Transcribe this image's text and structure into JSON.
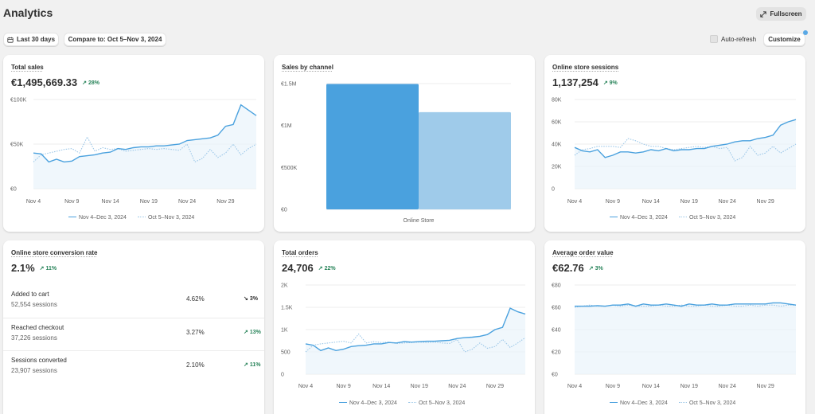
{
  "header": {
    "title": "Analytics",
    "fullscreen_label": "Fullscreen"
  },
  "toolbar": {
    "range_label": "Last 30 days",
    "compare_label": "Compare to: Oct 5–Nov 3, 2024",
    "autorefresh_label": "Auto-refresh",
    "customize_label": "Customize"
  },
  "legend": {
    "current": "Nov 4–Dec 3, 2024",
    "previous": "Oct 5–Nov 3, 2024"
  },
  "colors": {
    "current": "#4aa1de",
    "previous": "#9cc7e8",
    "positive": "#29845a"
  },
  "cards": {
    "total_sales": {
      "title": "Total sales",
      "value": "€1,495,669.33",
      "delta": "28%"
    },
    "sales_by_channel": {
      "title": "Sales by channel"
    },
    "sessions": {
      "title": "Online store sessions",
      "value": "1,137,254",
      "delta": "9%"
    },
    "conversion": {
      "title": "Online store conversion rate",
      "value": "2.1%",
      "delta": "11%",
      "rows": [
        {
          "name": "Added to cart",
          "sessions": "52,554 sessions",
          "pct": "4.62%",
          "delta": "3%",
          "direction": "down"
        },
        {
          "name": "Reached checkout",
          "sessions": "37,226 sessions",
          "pct": "3.27%",
          "delta": "13%",
          "direction": "up"
        },
        {
          "name": "Sessions converted",
          "sessions": "23,907 sessions",
          "pct": "2.10%",
          "delta": "11%",
          "direction": "up"
        }
      ]
    },
    "orders": {
      "title": "Total orders",
      "value": "24,706",
      "delta": "22%"
    },
    "aov": {
      "title": "Average order value",
      "value": "€62.76",
      "delta": "3%"
    }
  },
  "chart_data": [
    {
      "id": "total_sales",
      "type": "line",
      "x_ticks": [
        "Nov 4",
        "Nov 9",
        "Nov 14",
        "Nov 19",
        "Nov 24",
        "Nov 29"
      ],
      "y_ticks": [
        "€0",
        "€50K",
        "€100K"
      ],
      "ylim": [
        0,
        100000
      ],
      "series": [
        {
          "name": "Nov 4–Dec 3, 2024",
          "values": [
            40000,
            39000,
            30000,
            33000,
            30000,
            31000,
            36000,
            37000,
            38000,
            40000,
            41000,
            45000,
            44000,
            46000,
            47000,
            47000,
            48000,
            48000,
            49000,
            50000,
            54000,
            55000,
            56000,
            57000,
            60000,
            70000,
            72000,
            94000,
            88000,
            82000
          ]
        },
        {
          "name": "Oct 5–Nov 3, 2024",
          "values": [
            30000,
            38000,
            40000,
            42000,
            44000,
            45000,
            40000,
            58000,
            42000,
            46000,
            44000,
            45000,
            42000,
            43000,
            44000,
            45000,
            44000,
            45000,
            44000,
            43000,
            50000,
            30000,
            34000,
            44000,
            35000,
            40000,
            50000,
            38000,
            45000,
            50000
          ]
        }
      ]
    },
    {
      "id": "sales_by_channel",
      "type": "bar",
      "categories": [
        "Online Store"
      ],
      "y_ticks": [
        "€0",
        "€500K",
        "€1M",
        "€1.5M"
      ],
      "ylim": [
        0,
        1500000
      ],
      "series": [
        {
          "name": "Nov 4–Dec 3, 2024",
          "values": [
            1495669
          ]
        },
        {
          "name": "Oct 5–Nov 3, 2024",
          "values": [
            1160000
          ]
        }
      ]
    },
    {
      "id": "sessions",
      "type": "line",
      "x_ticks": [
        "Nov 4",
        "Nov 9",
        "Nov 14",
        "Nov 19",
        "Nov 24",
        "Nov 29"
      ],
      "y_ticks": [
        "0",
        "20K",
        "40K",
        "60K",
        "80K"
      ],
      "ylim": [
        0,
        80000
      ],
      "series": [
        {
          "name": "Nov 4–Dec 3, 2024",
          "values": [
            37000,
            34000,
            33000,
            35000,
            28000,
            30000,
            33000,
            33000,
            32000,
            33000,
            35000,
            34000,
            36000,
            34000,
            35000,
            35000,
            36000,
            36000,
            38000,
            39000,
            40000,
            42000,
            43000,
            43000,
            45000,
            46000,
            48000,
            57000,
            60000,
            62000
          ]
        },
        {
          "name": "Oct 5–Nov 3, 2024",
          "values": [
            30000,
            35000,
            36000,
            38000,
            38000,
            38000,
            37000,
            45000,
            43000,
            40000,
            38000,
            38000,
            36000,
            35000,
            36000,
            37000,
            38000,
            37000,
            38000,
            36000,
            37000,
            25000,
            28000,
            38000,
            30000,
            32000,
            38000,
            32000,
            36000,
            40000
          ]
        }
      ]
    },
    {
      "id": "orders",
      "type": "line",
      "x_ticks": [
        "Nov 4",
        "Nov 9",
        "Nov 14",
        "Nov 19",
        "Nov 24",
        "Nov 29"
      ],
      "y_ticks": [
        "0",
        "500",
        "1K",
        "1.5K",
        "2K"
      ],
      "ylim": [
        0,
        2000
      ],
      "series": [
        {
          "name": "Nov 4–Dec 3, 2024",
          "values": [
            680,
            650,
            530,
            590,
            530,
            560,
            620,
            640,
            650,
            680,
            680,
            710,
            700,
            730,
            720,
            730,
            740,
            740,
            750,
            760,
            800,
            820,
            830,
            850,
            890,
            1000,
            1050,
            1480,
            1400,
            1350
          ]
        },
        {
          "name": "Oct 5–Nov 3, 2024",
          "values": [
            500,
            650,
            680,
            700,
            720,
            740,
            700,
            900,
            700,
            730,
            710,
            720,
            690,
            700,
            710,
            720,
            710,
            720,
            700,
            690,
            780,
            500,
            560,
            700,
            580,
            620,
            780,
            600,
            700,
            820
          ]
        }
      ]
    },
    {
      "id": "aov",
      "type": "line",
      "x_ticks": [
        "Nov 4",
        "Nov 9",
        "Nov 14",
        "Nov 19",
        "Nov 24",
        "Nov 29"
      ],
      "y_ticks": [
        "€0",
        "€20",
        "€40",
        "€60",
        "€80"
      ],
      "ylim": [
        0,
        80
      ],
      "series": [
        {
          "name": "Nov 4–Dec 3, 2024",
          "values": [
            61,
            61,
            61,
            61.5,
            61,
            62,
            62,
            63,
            61,
            63,
            62,
            62,
            63,
            62,
            61,
            63,
            62,
            62,
            63,
            62,
            62,
            63,
            63,
            63,
            63,
            63,
            64,
            64,
            63,
            62
          ]
        },
        {
          "name": "Oct 5–Nov 3, 2024",
          "values": [
            60,
            61,
            62,
            61,
            61,
            62,
            61,
            62,
            61,
            61,
            61,
            62,
            61,
            61,
            62,
            61,
            61,
            62,
            61,
            61,
            62,
            61,
            61,
            62,
            61,
            62,
            62,
            61,
            62,
            62
          ]
        }
      ]
    }
  ]
}
